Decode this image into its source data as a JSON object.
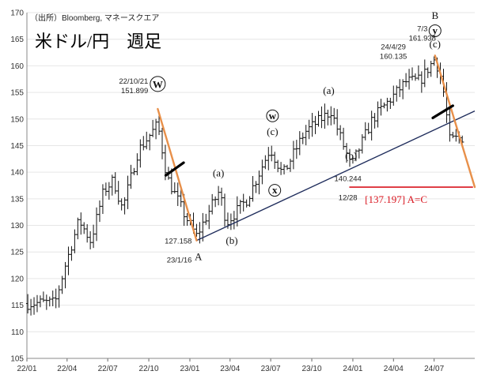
{
  "chart_data": {
    "type": "candlestick",
    "source": "（出所）Bloomberg, マネースクエア",
    "title": "米ドル/円　週足",
    "ylim": [
      105,
      170
    ],
    "yticks": [
      105,
      110,
      115,
      120,
      125,
      130,
      135,
      140,
      145,
      150,
      155,
      160,
      165,
      170
    ],
    "xlabels": [
      "22/01",
      "22/04",
      "22/07",
      "22/10",
      "23/01",
      "23/04",
      "23/07",
      "23/10",
      "24/01",
      "24/04",
      "24/07"
    ],
    "xlim": [
      "2022-01-01",
      "2024-09-30"
    ],
    "anchors": [
      {
        "date": "2022-01-01",
        "close": 115.3
      },
      {
        "date": "2022-02-10",
        "close": 115.5
      },
      {
        "date": "2022-03-05",
        "close": 115.4
      },
      {
        "date": "2022-03-28",
        "close": 122.5
      },
      {
        "date": "2022-04-28",
        "close": 131.0
      },
      {
        "date": "2022-05-24",
        "close": 127.0
      },
      {
        "date": "2022-06-22",
        "close": 136.5
      },
      {
        "date": "2022-07-14",
        "close": 138.5
      },
      {
        "date": "2022-08-03",
        "close": 133.0
      },
      {
        "date": "2022-09-07",
        "close": 144.0
      },
      {
        "date": "2022-10-21",
        "close": 149.0
      },
      {
        "date": "2022-11-11",
        "close": 139.0
      },
      {
        "date": "2022-12-20",
        "close": 132.0
      },
      {
        "date": "2023-01-16",
        "close": 128.0
      },
      {
        "date": "2023-03-08",
        "close": 136.5
      },
      {
        "date": "2023-03-24",
        "close": 130.5
      },
      {
        "date": "2023-05-10",
        "close": 135.0
      },
      {
        "date": "2023-06-30",
        "close": 144.5
      },
      {
        "date": "2023-07-28",
        "close": 139.5
      },
      {
        "date": "2023-09-15",
        "close": 147.5
      },
      {
        "date": "2023-11-13",
        "close": 151.5
      },
      {
        "date": "2023-12-28",
        "close": 141.0
      },
      {
        "date": "2024-02-14",
        "close": 150.0
      },
      {
        "date": "2024-04-29",
        "close": 157.0
      },
      {
        "date": "2024-05-31",
        "close": 157.3
      },
      {
        "date": "2024-07-03",
        "close": 161.4
      },
      {
        "date": "2024-07-19",
        "close": 157.0
      },
      {
        "date": "2024-08-05",
        "close": 146.0
      },
      {
        "date": "2024-09-02",
        "close": 146.5
      }
    ],
    "annotations": [
      {
        "text": "22/10/21",
        "date": "2022-10-21",
        "value": 151.899
      },
      {
        "text": "151.899",
        "date": "2022-10-21",
        "value": 151.899
      },
      {
        "text": "127.158",
        "date": "2023-01-16",
        "value": 127.158
      },
      {
        "text": "23/1/16",
        "date": "2023-01-16",
        "value": 127.158
      },
      {
        "text": "24/4/29",
        "date": "2024-04-29",
        "value": 160.135
      },
      {
        "text": "160.135",
        "date": "2024-04-29",
        "value": 160.135
      },
      {
        "text": "7/3",
        "date": "2024-07-03",
        "value": 161.938
      },
      {
        "text": "161.938",
        "date": "2024-07-03",
        "value": 161.938
      },
      {
        "text": "140.244",
        "date": "2023-12-28",
        "value": 140.244
      },
      {
        "text": "12/28",
        "date": "2023-12-28",
        "value": 140.244
      }
    ],
    "wave_labels": [
      {
        "text": "W",
        "date": "2022-10-21",
        "value": 156.0,
        "circled": true
      },
      {
        "text": "A",
        "date": "2023-01-20",
        "value": 123.5,
        "circled": false
      },
      {
        "text": "(a)",
        "date": "2023-03-06",
        "value": 139.2,
        "circled": false
      },
      {
        "text": "(b)",
        "date": "2023-04-05",
        "value": 126.5,
        "circled": false
      },
      {
        "text": "w",
        "date": "2023-07-05",
        "value": 150.0,
        "circled": true
      },
      {
        "text": "(c)",
        "date": "2023-07-05",
        "value": 147.0,
        "circled": false
      },
      {
        "text": "x",
        "date": "2023-07-10",
        "value": 136.0,
        "circled": true
      },
      {
        "text": "(a)",
        "date": "2023-11-08",
        "value": 154.7,
        "circled": false
      },
      {
        "text": "(b)",
        "date": "2023-12-28",
        "value": 142.5,
        "circled": false
      },
      {
        "text": "B",
        "date": "2024-07-03",
        "value": 168.8,
        "circled": false
      },
      {
        "text": "y",
        "date": "2024-07-03",
        "value": 166.0,
        "circled": true
      },
      {
        "text": "(c)",
        "date": "2024-07-03",
        "value": 163.5,
        "circled": false
      }
    ],
    "target_label": "[137.197] A=C",
    "target_value": 137.197,
    "trendline": [
      {
        "date": "2023-01-16",
        "value": 127.158
      },
      {
        "date": "2024-09-30",
        "value": 151.5
      }
    ],
    "orange_lines": [
      [
        {
          "date": "2022-10-21",
          "value": 151.9
        },
        {
          "date": "2023-01-16",
          "value": 127.16
        }
      ],
      [
        {
          "date": "2024-07-03",
          "value": 161.94
        },
        {
          "date": "2024-09-30",
          "value": 137.2
        }
      ]
    ],
    "black_markers": [
      [
        {
          "date": "2022-11-08",
          "value": 139.4
        },
        {
          "date": "2022-12-18",
          "value": 141.8
        }
      ],
      [
        {
          "date": "2024-06-28",
          "value": 150.2
        },
        {
          "date": "2024-08-12",
          "value": 152.5
        }
      ]
    ],
    "red_line": [
      {
        "date": "2023-12-24",
        "value": 137.2
      },
      {
        "date": "2024-09-26",
        "value": 137.2
      }
    ]
  }
}
